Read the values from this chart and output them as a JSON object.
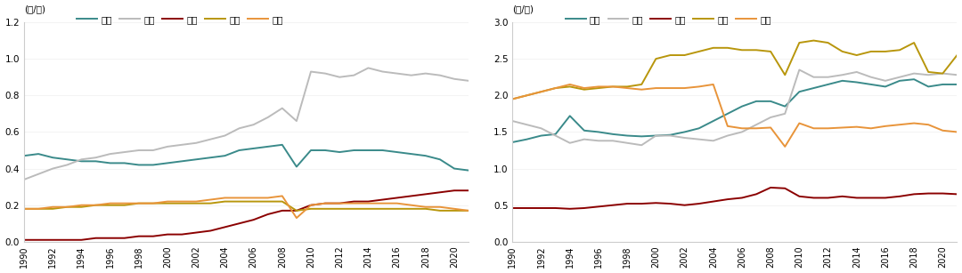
{
  "years": [
    1990,
    1991,
    1992,
    1993,
    1994,
    1995,
    1996,
    1997,
    1998,
    1999,
    2000,
    2001,
    2002,
    2003,
    2004,
    2005,
    2006,
    2007,
    2008,
    2009,
    2010,
    2011,
    2012,
    2013,
    2014,
    2015,
    2016,
    2017,
    2018,
    2019,
    2020,
    2021
  ],
  "left_ylabel": "(吨/人)",
  "right_ylabel": "(吨/吨)",
  "left_ylim": [
    0,
    1.2
  ],
  "right_ylim": [
    0,
    3.0
  ],
  "left_yticks": [
    0,
    0.2,
    0.4,
    0.6,
    0.8,
    1.0,
    1.2
  ],
  "right_yticks": [
    0,
    0.5,
    1.0,
    1.5,
    2.0,
    2.5,
    3.0
  ],
  "legend_labels": [
    "日本",
    "韩国",
    "中国",
    "美国",
    "欧盟"
  ],
  "colors": {
    "日本": "#3A8A8A",
    "韩国": "#BBBBBB",
    "中国": "#8B0000",
    "美国": "#B8960C",
    "欧盟": "#E8943A"
  },
  "left": {
    "日本": [
      0.47,
      0.48,
      0.46,
      0.45,
      0.44,
      0.44,
      0.43,
      0.43,
      0.42,
      0.42,
      0.43,
      0.44,
      0.45,
      0.46,
      0.47,
      0.5,
      0.51,
      0.52,
      0.53,
      0.41,
      0.5,
      0.5,
      0.49,
      0.5,
      0.5,
      0.5,
      0.49,
      0.48,
      0.47,
      0.45,
      0.4,
      0.39
    ],
    "韩国": [
      0.34,
      0.37,
      0.4,
      0.42,
      0.45,
      0.46,
      0.48,
      0.49,
      0.5,
      0.5,
      0.52,
      0.53,
      0.54,
      0.56,
      0.58,
      0.62,
      0.64,
      0.68,
      0.73,
      0.66,
      0.93,
      0.92,
      0.9,
      0.91,
      0.95,
      0.93,
      0.92,
      0.91,
      0.92,
      0.91,
      0.89,
      0.88
    ],
    "中国": [
      0.01,
      0.01,
      0.01,
      0.01,
      0.01,
      0.02,
      0.02,
      0.02,
      0.03,
      0.03,
      0.04,
      0.04,
      0.05,
      0.06,
      0.08,
      0.1,
      0.12,
      0.15,
      0.17,
      0.17,
      0.2,
      0.21,
      0.21,
      0.22,
      0.22,
      0.23,
      0.24,
      0.25,
      0.26,
      0.27,
      0.28,
      0.28
    ],
    "美国": [
      0.18,
      0.18,
      0.18,
      0.19,
      0.19,
      0.2,
      0.2,
      0.2,
      0.21,
      0.21,
      0.21,
      0.21,
      0.21,
      0.21,
      0.22,
      0.22,
      0.22,
      0.22,
      0.22,
      0.17,
      0.18,
      0.18,
      0.18,
      0.18,
      0.18,
      0.18,
      0.18,
      0.18,
      0.18,
      0.17,
      0.17,
      0.17
    ],
    "欧盟": [
      0.18,
      0.18,
      0.19,
      0.19,
      0.2,
      0.2,
      0.21,
      0.21,
      0.21,
      0.21,
      0.22,
      0.22,
      0.22,
      0.23,
      0.24,
      0.24,
      0.24,
      0.24,
      0.25,
      0.13,
      0.2,
      0.21,
      0.21,
      0.21,
      0.21,
      0.21,
      0.21,
      0.2,
      0.19,
      0.19,
      0.18,
      0.17
    ]
  },
  "right": {
    "日本": [
      1.36,
      1.4,
      1.45,
      1.47,
      1.72,
      1.52,
      1.5,
      1.47,
      1.45,
      1.44,
      1.45,
      1.46,
      1.5,
      1.55,
      1.65,
      1.75,
      1.85,
      1.92,
      1.92,
      1.85,
      2.05,
      2.1,
      2.15,
      2.2,
      2.18,
      2.15,
      2.12,
      2.2,
      2.22,
      2.12,
      2.15,
      2.15
    ],
    "韩国": [
      1.65,
      1.6,
      1.55,
      1.45,
      1.35,
      1.4,
      1.38,
      1.38,
      1.35,
      1.32,
      1.45,
      1.45,
      1.42,
      1.4,
      1.38,
      1.45,
      1.5,
      1.6,
      1.7,
      1.75,
      2.35,
      2.25,
      2.25,
      2.28,
      2.32,
      2.25,
      2.2,
      2.25,
      2.3,
      2.28,
      2.3,
      2.28
    ],
    "中国": [
      0.46,
      0.46,
      0.46,
      0.46,
      0.45,
      0.46,
      0.48,
      0.5,
      0.52,
      0.52,
      0.53,
      0.52,
      0.5,
      0.52,
      0.55,
      0.58,
      0.6,
      0.65,
      0.74,
      0.73,
      0.62,
      0.6,
      0.6,
      0.62,
      0.6,
      0.6,
      0.6,
      0.62,
      0.65,
      0.66,
      0.66,
      0.65
    ],
    "美国": [
      1.95,
      2.0,
      2.05,
      2.1,
      2.12,
      2.08,
      2.1,
      2.12,
      2.12,
      2.15,
      2.5,
      2.55,
      2.55,
      2.6,
      2.65,
      2.65,
      2.62,
      2.62,
      2.6,
      2.28,
      2.72,
      2.75,
      2.72,
      2.6,
      2.55,
      2.6,
      2.6,
      2.62,
      2.72,
      2.32,
      2.3,
      2.55
    ],
    "欧盟": [
      1.95,
      2.0,
      2.05,
      2.1,
      2.15,
      2.1,
      2.12,
      2.12,
      2.1,
      2.08,
      2.1,
      2.1,
      2.1,
      2.12,
      2.15,
      1.58,
      1.55,
      1.55,
      1.56,
      1.3,
      1.62,
      1.55,
      1.55,
      1.56,
      1.57,
      1.55,
      1.58,
      1.6,
      1.62,
      1.6,
      1.52,
      1.5
    ]
  }
}
